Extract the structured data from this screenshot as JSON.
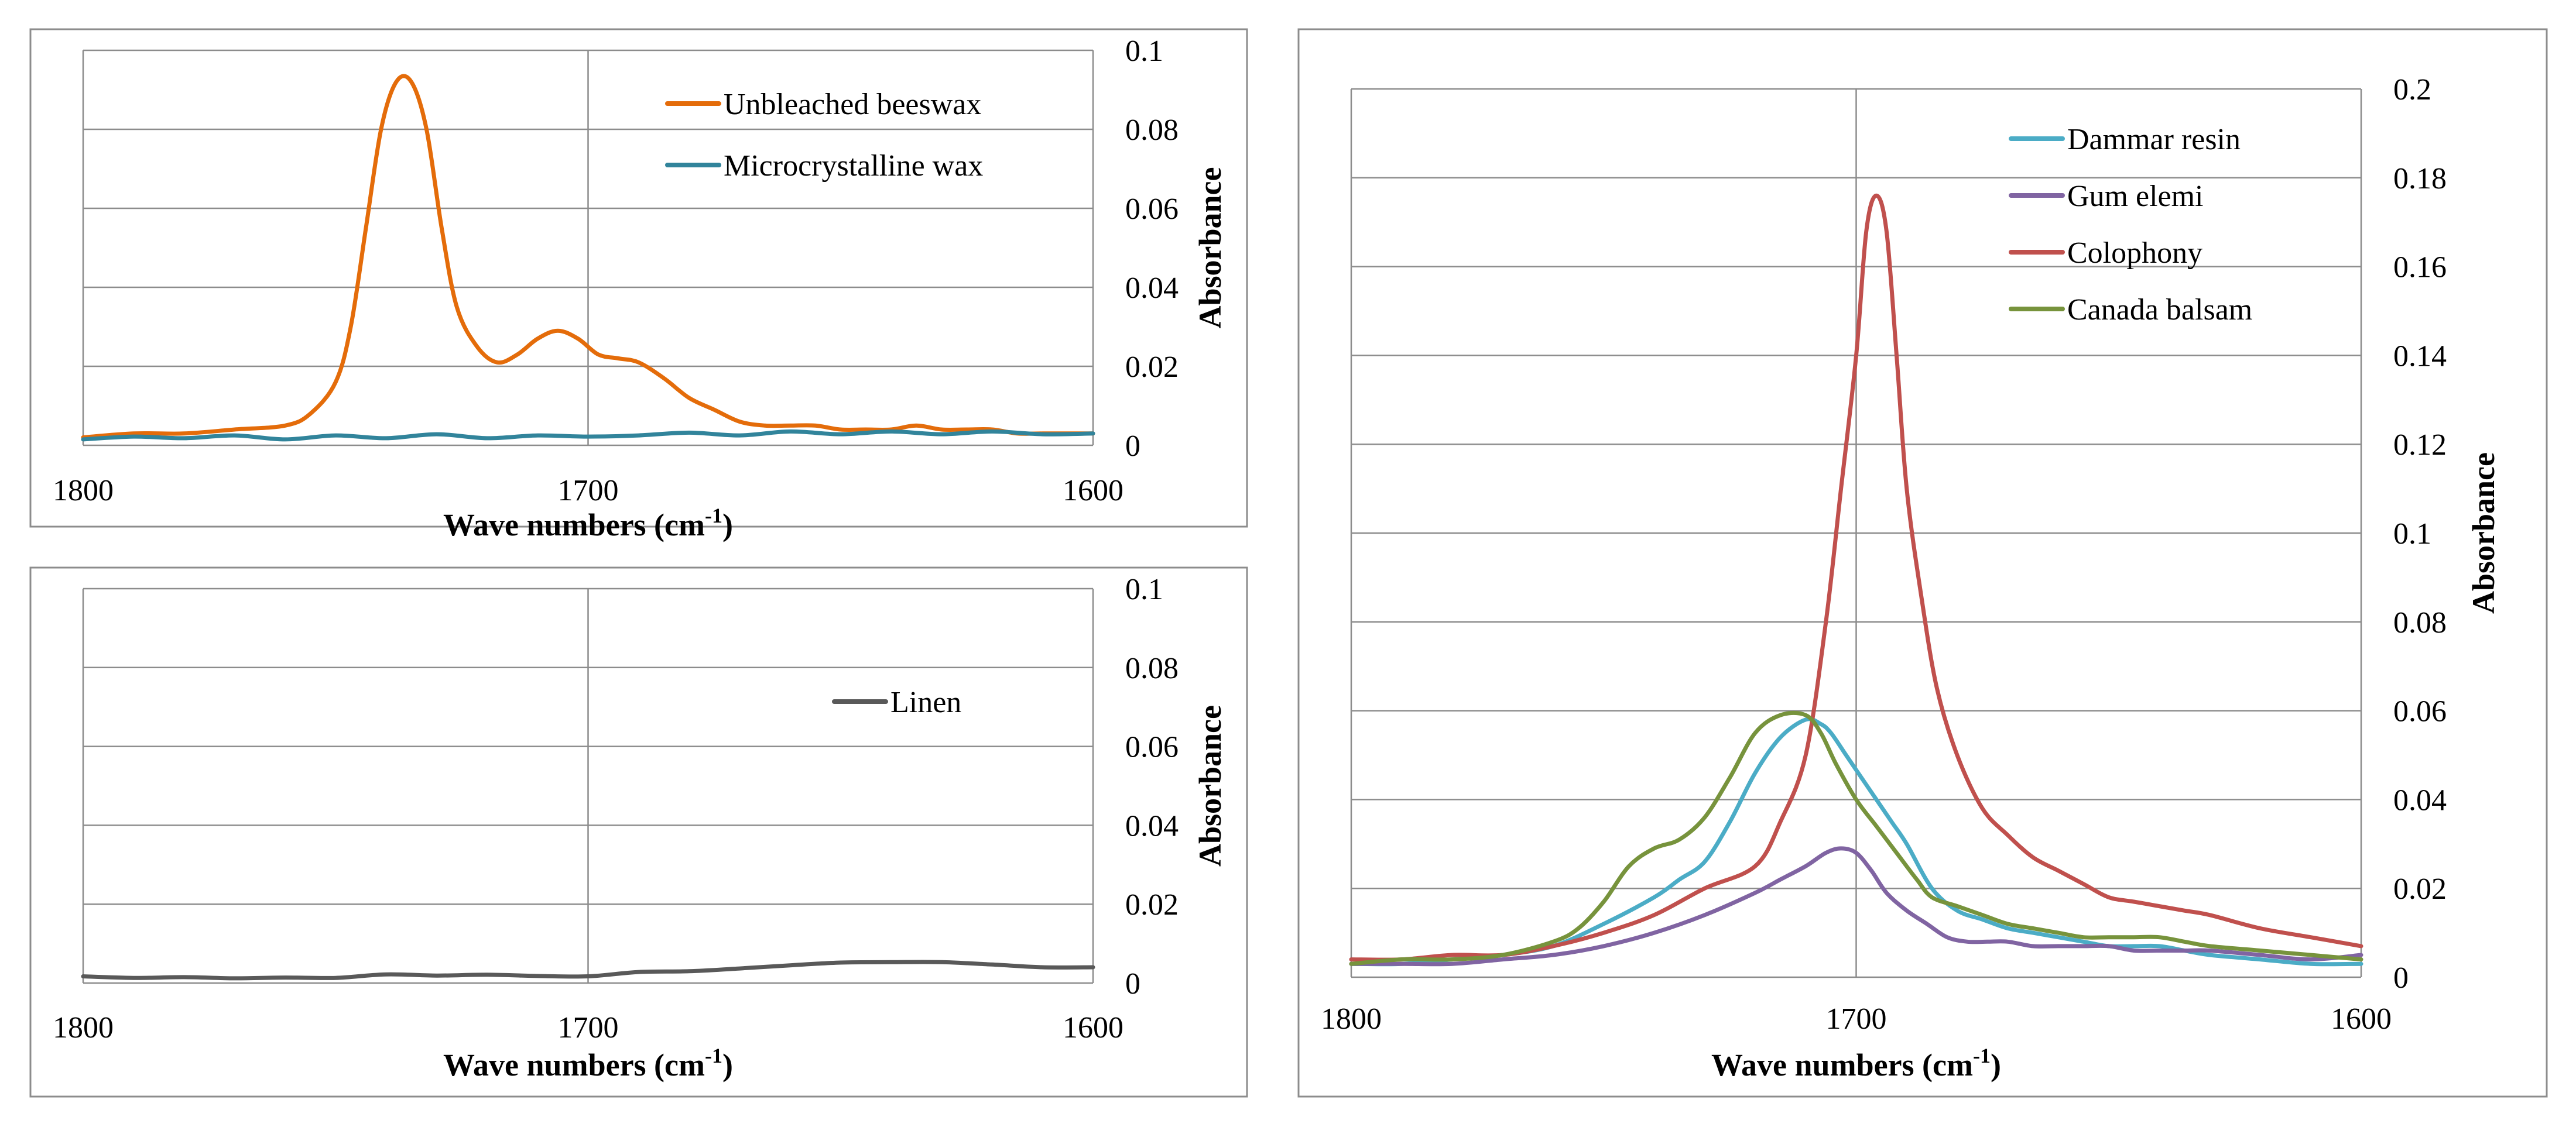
{
  "chart_data": [
    {
      "type": "line",
      "xlabel": "Wave numbers (cm",
      "xlabel_sup": "-1",
      "xlabel_end": ")",
      "ylabel": "Absorbance",
      "xlim": [
        1800,
        1600
      ],
      "ylim": [
        0,
        0.1
      ],
      "x_ticks": [
        "1800",
        "1700",
        "1600"
      ],
      "y_ticks": [
        "0",
        "0.02",
        "0.04",
        "0.06",
        "0.08",
        "0.1"
      ],
      "grid": true,
      "legend_position": "top-right",
      "series": [
        {
          "name": "Unbleached beeswax",
          "color": "#E46C0A",
          "x": [
            1800,
            1790,
            1780,
            1770,
            1760,
            1755,
            1750,
            1747,
            1744,
            1741,
            1738,
            1735,
            1732,
            1729,
            1726,
            1722,
            1718,
            1714,
            1710,
            1706,
            1702,
            1698,
            1694,
            1690,
            1685,
            1680,
            1675,
            1670,
            1665,
            1660,
            1655,
            1650,
            1645,
            1640,
            1635,
            1630,
            1625,
            1620,
            1615,
            1610,
            1605,
            1600
          ],
          "y": [
            0.002,
            0.003,
            0.003,
            0.004,
            0.005,
            0.008,
            0.016,
            0.03,
            0.055,
            0.08,
            0.092,
            0.092,
            0.08,
            0.055,
            0.035,
            0.025,
            0.021,
            0.023,
            0.027,
            0.029,
            0.027,
            0.023,
            0.022,
            0.021,
            0.017,
            0.012,
            0.009,
            0.006,
            0.005,
            0.005,
            0.005,
            0.004,
            0.004,
            0.004,
            0.005,
            0.004,
            0.004,
            0.004,
            0.003,
            0.003,
            0.003,
            0.003
          ]
        },
        {
          "name": "Microcrystalline wax",
          "color": "#31849B",
          "x": [
            1800,
            1790,
            1780,
            1770,
            1760,
            1750,
            1740,
            1730,
            1720,
            1710,
            1700,
            1690,
            1680,
            1670,
            1660,
            1650,
            1640,
            1630,
            1620,
            1610,
            1600
          ],
          "y": [
            0.0015,
            0.0022,
            0.0018,
            0.0025,
            0.0015,
            0.0025,
            0.0018,
            0.0028,
            0.0018,
            0.0025,
            0.0022,
            0.0025,
            0.0032,
            0.0025,
            0.0035,
            0.0028,
            0.0035,
            0.0028,
            0.0035,
            0.0028,
            0.003
          ]
        }
      ]
    },
    {
      "type": "line",
      "xlabel": "Wave numbers (cm",
      "xlabel_sup": "-1",
      "xlabel_end": ")",
      "ylabel": "Absorbance",
      "xlim": [
        1800,
        1600
      ],
      "ylim": [
        0,
        0.1
      ],
      "x_ticks": [
        "1800",
        "1700",
        "1600"
      ],
      "y_ticks": [
        "0",
        "0.02",
        "0.04",
        "0.06",
        "0.08",
        "0.1"
      ],
      "grid": true,
      "legend_position": "top-right",
      "series": [
        {
          "name": "Linen",
          "color": "#595959",
          "x": [
            1800,
            1790,
            1780,
            1770,
            1760,
            1750,
            1740,
            1730,
            1720,
            1710,
            1700,
            1690,
            1680,
            1670,
            1660,
            1650,
            1640,
            1630,
            1620,
            1610,
            1600
          ],
          "y": [
            0.0017,
            0.0013,
            0.0015,
            0.0012,
            0.0014,
            0.0013,
            0.0022,
            0.0019,
            0.0021,
            0.0018,
            0.0017,
            0.0028,
            0.003,
            0.0037,
            0.0045,
            0.0052,
            0.0053,
            0.0053,
            0.0047,
            0.004,
            0.004
          ]
        }
      ]
    },
    {
      "type": "line",
      "xlabel": "Wave numbers (cm",
      "xlabel_sup": "-1",
      "xlabel_end": ")",
      "ylabel": "Absorbance",
      "xlim": [
        1800,
        1600
      ],
      "ylim": [
        0,
        0.2
      ],
      "x_ticks": [
        "1800",
        "1700",
        "1600"
      ],
      "y_ticks": [
        "0",
        "0.02",
        "0.04",
        "0.06",
        "0.08",
        "0.1",
        "0.12",
        "0.14",
        "0.16",
        "0.18",
        "0.2"
      ],
      "grid": true,
      "legend_position": "top-right",
      "series": [
        {
          "name": "Dammar resin",
          "color": "#4BACC6",
          "x": [
            1800,
            1790,
            1780,
            1770,
            1760,
            1750,
            1740,
            1735,
            1730,
            1725,
            1720,
            1715,
            1710,
            1707,
            1705,
            1702,
            1699,
            1696,
            1693,
            1690,
            1685,
            1680,
            1675,
            1670,
            1665,
            1660,
            1655,
            1650,
            1645,
            1640,
            1635,
            1630,
            1620,
            1610,
            1600
          ],
          "y": [
            0.003,
            0.003,
            0.004,
            0.005,
            0.007,
            0.012,
            0.018,
            0.022,
            0.026,
            0.035,
            0.046,
            0.054,
            0.058,
            0.057,
            0.055,
            0.05,
            0.045,
            0.04,
            0.035,
            0.03,
            0.02,
            0.015,
            0.013,
            0.011,
            0.01,
            0.009,
            0.008,
            0.007,
            0.007,
            0.007,
            0.006,
            0.005,
            0.004,
            0.003,
            0.003
          ]
        },
        {
          "name": "Gum elemi",
          "color": "#8064A2",
          "x": [
            1800,
            1790,
            1780,
            1770,
            1760,
            1750,
            1740,
            1730,
            1720,
            1715,
            1710,
            1706,
            1703,
            1700,
            1697,
            1694,
            1690,
            1686,
            1682,
            1678,
            1674,
            1670,
            1665,
            1660,
            1655,
            1650,
            1645,
            1640,
            1635,
            1630,
            1620,
            1610,
            1600
          ],
          "y": [
            0.003,
            0.003,
            0.003,
            0.004,
            0.005,
            0.007,
            0.01,
            0.014,
            0.019,
            0.022,
            0.025,
            0.028,
            0.029,
            0.028,
            0.024,
            0.019,
            0.015,
            0.012,
            0.009,
            0.008,
            0.008,
            0.008,
            0.007,
            0.007,
            0.007,
            0.007,
            0.006,
            0.006,
            0.006,
            0.006,
            0.005,
            0.004,
            0.005
          ]
        },
        {
          "name": "Colophony",
          "color": "#C0504D",
          "x": [
            1800,
            1790,
            1780,
            1770,
            1760,
            1750,
            1740,
            1730,
            1720,
            1715,
            1710,
            1706,
            1703,
            1700,
            1698,
            1696,
            1694,
            1692,
            1690,
            1687,
            1684,
            1680,
            1675,
            1670,
            1665,
            1660,
            1655,
            1650,
            1645,
            1640,
            1635,
            1630,
            1620,
            1610,
            1600
          ],
          "y": [
            0.004,
            0.004,
            0.005,
            0.005,
            0.007,
            0.01,
            0.014,
            0.02,
            0.025,
            0.035,
            0.05,
            0.08,
            0.11,
            0.14,
            0.168,
            0.176,
            0.168,
            0.14,
            0.11,
            0.085,
            0.065,
            0.05,
            0.038,
            0.032,
            0.027,
            0.024,
            0.021,
            0.018,
            0.017,
            0.016,
            0.015,
            0.014,
            0.011,
            0.009,
            0.007
          ]
        },
        {
          "name": "Canada balsam",
          "color": "#77933C",
          "x": [
            1800,
            1790,
            1780,
            1770,
            1760,
            1755,
            1750,
            1745,
            1740,
            1735,
            1730,
            1725,
            1720,
            1715,
            1710,
            1707,
            1704,
            1700,
            1696,
            1692,
            1688,
            1685,
            1680,
            1675,
            1670,
            1665,
            1660,
            1655,
            1650,
            1645,
            1640,
            1635,
            1630,
            1620,
            1610,
            1600
          ],
          "y": [
            0.003,
            0.004,
            0.004,
            0.005,
            0.008,
            0.011,
            0.017,
            0.025,
            0.029,
            0.031,
            0.036,
            0.045,
            0.055,
            0.059,
            0.059,
            0.055,
            0.048,
            0.04,
            0.034,
            0.028,
            0.022,
            0.018,
            0.016,
            0.014,
            0.012,
            0.011,
            0.01,
            0.009,
            0.009,
            0.009,
            0.009,
            0.008,
            0.007,
            0.006,
            0.005,
            0.004
          ]
        }
      ]
    }
  ]
}
